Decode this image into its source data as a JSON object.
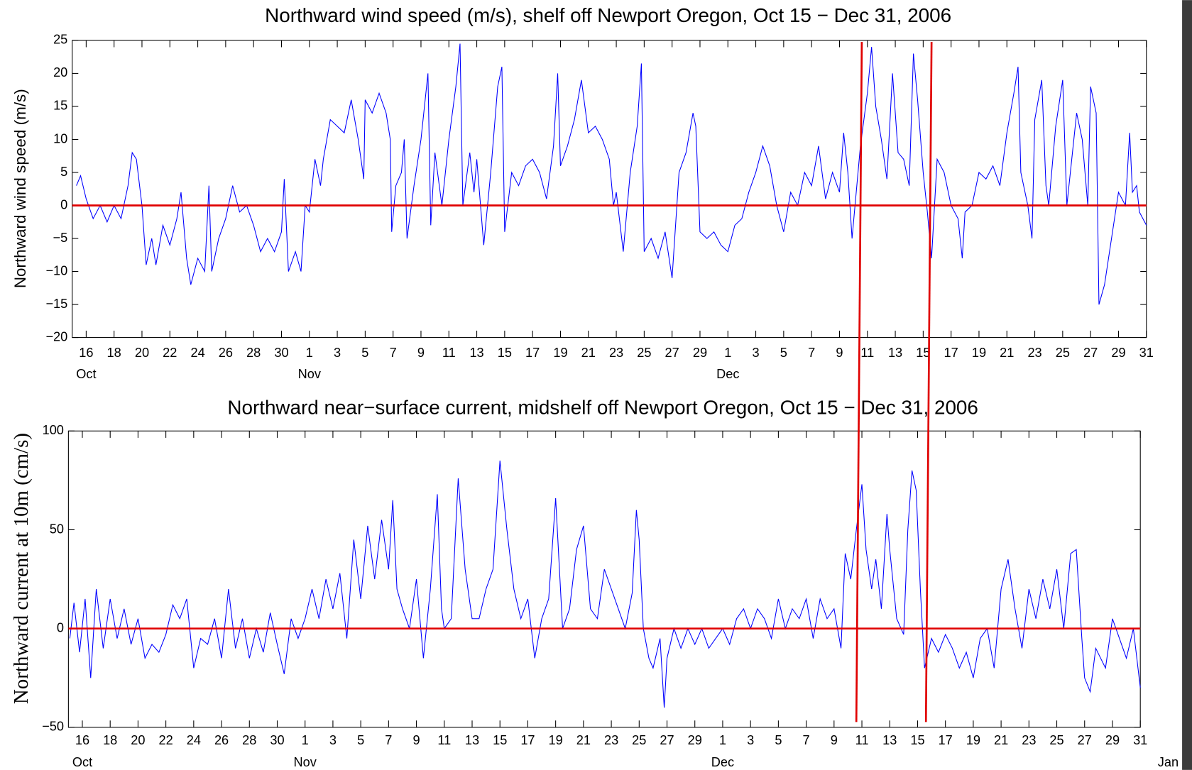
{
  "chart_data": [
    {
      "type": "line",
      "title": "Northward wind speed (m/s), shelf off Newport Oregon, Oct 15 − Dec 31, 2006",
      "y_label": "Northward wind speed (m/s)",
      "xlim": [
        15,
        92
      ],
      "ylim": [
        -20,
        25
      ],
      "yticks": [
        {
          "value": -20,
          "label": "−20"
        },
        {
          "value": -15,
          "label": "−15"
        },
        {
          "value": -10,
          "label": "−10"
        },
        {
          "value": -5,
          "label": "−5"
        },
        0,
        5,
        10,
        15,
        20,
        25
      ],
      "xticks": [
        16,
        18,
        20,
        22,
        24,
        26,
        28,
        30,
        {
          "value": 32,
          "label": "1"
        },
        {
          "value": 34,
          "label": "3"
        },
        {
          "value": 36,
          "label": "5"
        },
        {
          "value": 38,
          "label": "7"
        },
        {
          "value": 40,
          "label": "9"
        },
        {
          "value": 42,
          "label": "11"
        },
        {
          "value": 44,
          "label": "13"
        },
        {
          "value": 46,
          "label": "15"
        },
        {
          "value": 48,
          "label": "17"
        },
        {
          "value": 50,
          "label": "19"
        },
        {
          "value": 52,
          "label": "21"
        },
        {
          "value": 54,
          "label": "23"
        },
        {
          "value": 56,
          "label": "25"
        },
        {
          "value": 58,
          "label": "27"
        },
        {
          "value": 60,
          "label": "29"
        },
        {
          "value": 62,
          "label": "1"
        },
        {
          "value": 64,
          "label": "3"
        },
        {
          "value": 66,
          "label": "5"
        },
        {
          "value": 68,
          "label": "7"
        },
        {
          "value": 70,
          "label": "9"
        },
        {
          "value": 72,
          "label": "11"
        },
        {
          "value": 74,
          "label": "13"
        },
        {
          "value": 76,
          "label": "15"
        },
        {
          "value": 78,
          "label": "17"
        },
        {
          "value": 80,
          "label": "19"
        },
        {
          "value": 82,
          "label": "21"
        },
        {
          "value": 84,
          "label": "23"
        },
        {
          "value": 86,
          "label": "25"
        },
        {
          "value": 88,
          "label": "27"
        },
        {
          "value": 90,
          "label": "29"
        },
        {
          "value": 92,
          "label": "31"
        }
      ],
      "month_labels": [
        {
          "value": 16,
          "label": "Oct"
        },
        {
          "value": 32,
          "label": "Nov"
        },
        {
          "value": 62,
          "label": "Dec"
        }
      ],
      "color": "#0000ff",
      "x": [
        15.3,
        15.6,
        16,
        16.5,
        17,
        17.5,
        18,
        18.5,
        19,
        19.3,
        19.6,
        20,
        20.3,
        20.7,
        21,
        21.5,
        22,
        22.5,
        22.8,
        23.2,
        23.5,
        24,
        24.5,
        24.8,
        25,
        25.5,
        26,
        26.5,
        27,
        27.5,
        28,
        28.5,
        29,
        29.5,
        30,
        30.2,
        30.5,
        31,
        31.4,
        31.7,
        32,
        32.4,
        32.8,
        33,
        33.5,
        34,
        34.5,
        35,
        35.5,
        35.9,
        36,
        36.5,
        37,
        37.5,
        37.8,
        37.9,
        38.2,
        38.6,
        38.8,
        39,
        39.5,
        40,
        40.5,
        40.7,
        41,
        41.5,
        41.8,
        42,
        42.5,
        42.8,
        43,
        43.5,
        43.8,
        44,
        44.5,
        45,
        45.5,
        45.8,
        46,
        46.5,
        47,
        47.5,
        48,
        48.5,
        49,
        49.5,
        49.8,
        50,
        50.5,
        51,
        51.5,
        52,
        52.5,
        53,
        53.5,
        53.8,
        54,
        54.5,
        55,
        55.5,
        55.8,
        56,
        56.5,
        57,
        57.5,
        58,
        58.5,
        59,
        59.5,
        59.7,
        60,
        60.5,
        61,
        61.5,
        62,
        62.5,
        63,
        63.5,
        64,
        64.5,
        65,
        65.5,
        66,
        66.5,
        67,
        67.5,
        68,
        68.5,
        69,
        69.5,
        70,
        70.3,
        70.6,
        70.9,
        71.2,
        71.5,
        72,
        72.3,
        72.6,
        73,
        73.4,
        73.8,
        74.2,
        74.6,
        75,
        75.3,
        75.6,
        76,
        76.3,
        76.6,
        77,
        77.5,
        78,
        78.5,
        78.8,
        79,
        79.5,
        80,
        80.5,
        81,
        81.5,
        82,
        82.5,
        82.8,
        83,
        83.5,
        83.8,
        84,
        84.5,
        84.8,
        85,
        85.5,
        86,
        86.3,
        87,
        87.4,
        87.8,
        88,
        88.4,
        88.6,
        89,
        89.5,
        90,
        90.5,
        90.8,
        91,
        91.3,
        91.5,
        92
      ],
      "values": [
        3,
        4.5,
        1,
        -2,
        0,
        -2.5,
        0,
        -2,
        3,
        8,
        7,
        0,
        -9,
        -5,
        -9,
        -3,
        -6,
        -2,
        2,
        -8,
        -12,
        -8,
        -10,
        3,
        -10,
        -5,
        -2,
        3,
        -1,
        0,
        -3,
        -7,
        -5,
        -7,
        -4,
        4,
        -10,
        -7,
        -10,
        0,
        -1,
        7,
        3,
        7,
        13,
        12,
        11,
        16,
        10,
        4,
        16,
        14,
        17,
        14,
        10,
        -4,
        3,
        5,
        10,
        -5,
        3,
        10,
        20,
        -3,
        8,
        0,
        6,
        10,
        18,
        24.5,
        0,
        8,
        2,
        7,
        -6,
        5,
        18,
        21,
        -4,
        5,
        3,
        6,
        7,
        5,
        1,
        9,
        20,
        6,
        9,
        13,
        19,
        11,
        12,
        10,
        7,
        0,
        2,
        -7,
        5,
        12,
        21.5,
        -7,
        -5,
        -8,
        -4,
        -11,
        5,
        8,
        14,
        12,
        -4,
        -5,
        -4,
        -6,
        -7,
        -3,
        -2,
        2,
        5,
        9,
        6,
        0,
        -4,
        2,
        0,
        5,
        3,
        9,
        1,
        5,
        2,
        11,
        5,
        -5,
        2,
        9,
        17,
        24,
        15,
        10,
        4,
        20,
        8,
        7,
        3,
        23,
        16,
        5,
        -1,
        -8,
        7,
        5,
        0,
        -2,
        -8,
        -1,
        0,
        5,
        4,
        6,
        3,
        11,
        17,
        21,
        5,
        0,
        -5,
        13,
        19,
        3,
        0,
        12,
        19,
        0,
        14,
        10,
        0,
        18,
        14,
        -15,
        -12,
        -5,
        2,
        0,
        11,
        2,
        3,
        -1,
        -3
      ]
    },
    {
      "type": "line",
      "title": "Northward near−surface current, midshelf off Newport Oregon, Oct 15 − Dec 31, 2006",
      "y_label": "Northward current at 10m (cm/s)",
      "xlim": [
        15,
        92
      ],
      "ylim": [
        -50,
        100
      ],
      "yticks": [
        {
          "value": -50,
          "label": "−50"
        },
        0,
        50,
        100
      ],
      "xticks": [
        16,
        18,
        20,
        22,
        24,
        26,
        28,
        30,
        {
          "value": 32,
          "label": "1"
        },
        {
          "value": 34,
          "label": "3"
        },
        {
          "value": 36,
          "label": "5"
        },
        {
          "value": 38,
          "label": "7"
        },
        {
          "value": 40,
          "label": "9"
        },
        {
          "value": 42,
          "label": "11"
        },
        {
          "value": 44,
          "label": "13"
        },
        {
          "value": 46,
          "label": "15"
        },
        {
          "value": 48,
          "label": "17"
        },
        {
          "value": 50,
          "label": "19"
        },
        {
          "value": 52,
          "label": "21"
        },
        {
          "value": 54,
          "label": "23"
        },
        {
          "value": 56,
          "label": "25"
        },
        {
          "value": 58,
          "label": "27"
        },
        {
          "value": 60,
          "label": "29"
        },
        {
          "value": 62,
          "label": "1"
        },
        {
          "value": 64,
          "label": "3"
        },
        {
          "value": 66,
          "label": "5"
        },
        {
          "value": 68,
          "label": "7"
        },
        {
          "value": 70,
          "label": "9"
        },
        {
          "value": 72,
          "label": "11"
        },
        {
          "value": 74,
          "label": "13"
        },
        {
          "value": 76,
          "label": "15"
        },
        {
          "value": 78,
          "label": "17"
        },
        {
          "value": 80,
          "label": "19"
        },
        {
          "value": 82,
          "label": "21"
        },
        {
          "value": 84,
          "label": "23"
        },
        {
          "value": 86,
          "label": "25"
        },
        {
          "value": 88,
          "label": "27"
        },
        {
          "value": 90,
          "label": "29"
        },
        {
          "value": 92,
          "label": "31"
        }
      ],
      "month_labels": [
        {
          "value": 16,
          "label": "Oct"
        },
        {
          "value": 32,
          "label": "Nov"
        },
        {
          "value": 62,
          "label": "Dec"
        },
        {
          "value": 94,
          "label": "Jan"
        }
      ],
      "color": "#0000ff",
      "x": [
        15.1,
        15.4,
        15.8,
        16.2,
        16.6,
        17,
        17.5,
        18,
        18.5,
        19,
        19.5,
        20,
        20.5,
        21,
        21.5,
        22,
        22.5,
        23,
        23.5,
        24,
        24.5,
        25,
        25.5,
        26,
        26.5,
        27,
        27.5,
        28,
        28.5,
        29,
        29.5,
        30,
        30.5,
        31,
        31.5,
        32,
        32.5,
        33,
        33.5,
        34,
        34.5,
        35,
        35.5,
        36,
        36.5,
        37,
        37.5,
        38,
        38.3,
        38.6,
        39,
        39.5,
        40,
        40.5,
        41,
        41.5,
        41.8,
        42,
        42.5,
        43,
        43.5,
        44,
        44.5,
        45,
        45.5,
        46,
        46.5,
        47,
        47.5,
        48,
        48.5,
        49,
        49.5,
        50,
        50.5,
        51,
        51.5,
        52,
        52.5,
        53,
        53.5,
        54,
        54.5,
        55,
        55.5,
        55.8,
        56,
        56.3,
        56.7,
        57,
        57.5,
        57.8,
        58,
        58.5,
        59,
        59.5,
        60,
        60.5,
        61,
        61.5,
        62,
        62.5,
        63,
        63.5,
        64,
        64.5,
        65,
        65.5,
        66,
        66.5,
        67,
        67.5,
        68,
        68.5,
        69,
        69.5,
        70,
        70.5,
        70.8,
        71.2,
        71.6,
        72,
        72.3,
        72.7,
        73,
        73.4,
        73.8,
        74,
        74.5,
        75,
        75.3,
        75.6,
        75.9,
        76.2,
        76.5,
        77,
        77.5,
        78,
        78.5,
        79,
        79.5,
        80,
        80.5,
        81,
        81.5,
        82,
        82.5,
        83,
        83.5,
        84,
        84.5,
        85,
        85.5,
        86,
        86.5,
        87,
        87.4,
        87.8,
        88,
        88.4,
        88.8,
        89.5,
        90,
        90.5,
        91,
        91.5,
        92
      ],
      "values": [
        -5,
        13,
        -12,
        15,
        -25,
        20,
        -10,
        15,
        -5,
        10,
        -8,
        5,
        -15,
        -8,
        -12,
        -3,
        12,
        5,
        15,
        -20,
        -5,
        -8,
        5,
        -15,
        20,
        -10,
        5,
        -15,
        0,
        -12,
        8,
        -8,
        -23,
        5,
        -5,
        5,
        20,
        5,
        25,
        10,
        28,
        -5,
        45,
        15,
        52,
        25,
        55,
        30,
        65,
        20,
        10,
        0,
        25,
        -15,
        20,
        68,
        10,
        0,
        5,
        76,
        30,
        5,
        5,
        20,
        30,
        85,
        50,
        20,
        5,
        15,
        -15,
        5,
        15,
        66,
        0,
        10,
        40,
        52,
        10,
        5,
        30,
        20,
        10,
        0,
        18,
        60,
        45,
        0,
        -15,
        -20,
        -5,
        -40,
        -15,
        0,
        -10,
        0,
        -8,
        0,
        -10,
        -5,
        0,
        -8,
        5,
        10,
        0,
        10,
        5,
        -5,
        15,
        0,
        10,
        5,
        15,
        -5,
        15,
        5,
        10,
        -10,
        38,
        25,
        50,
        73,
        40,
        20,
        35,
        10,
        58,
        40,
        5,
        -3,
        50,
        80,
        70,
        20,
        -20,
        -5,
        -12,
        -3,
        -10,
        -20,
        -12,
        -25,
        -5,
        0,
        -20,
        20,
        35,
        10,
        -10,
        20,
        5,
        25,
        10,
        30,
        0,
        38,
        40,
        -5,
        -25,
        -32,
        -10,
        -20,
        5,
        -5,
        -15,
        0,
        -30
      ]
    }
  ],
  "reference_lines": {
    "color": "#e00000",
    "x": [
      71.6,
      76.6
    ],
    "y": 0
  }
}
